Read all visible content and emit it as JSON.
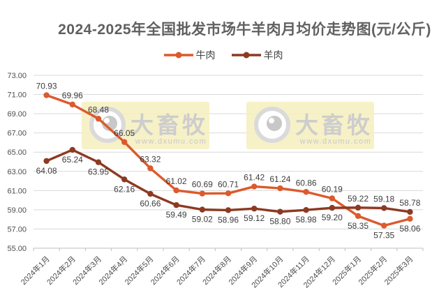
{
  "watermark": {
    "brand": "大畜牧",
    "url": "www.dxumu.com"
  },
  "chart_data": {
    "type": "line",
    "title": "2024-2025年全国批发市场牛羊肉月均价走势图(元/公斤)",
    "categories": [
      "2024年1月",
      "2024年2月",
      "2024年3月",
      "2024年4月",
      "2024年5月",
      "2024年6月",
      "2024年7月",
      "2024年8月",
      "2024年9月",
      "2024年10月",
      "2024年11月",
      "2024年12月",
      "2025年1月",
      "2025年2月",
      "2025年3月"
    ],
    "series": [
      {
        "name": "牛肉",
        "color": "#DC5A2D",
        "values": [
          70.93,
          69.96,
          68.48,
          66.05,
          63.32,
          61.02,
          60.69,
          60.71,
          61.42,
          61.24,
          60.86,
          60.19,
          58.35,
          57.35,
          58.06
        ]
      },
      {
        "name": "羊肉",
        "color": "#8C3A22",
        "values": [
          64.08,
          65.24,
          63.95,
          62.16,
          60.66,
          59.49,
          59.02,
          58.96,
          59.12,
          58.8,
          58.98,
          59.2,
          59.22,
          59.18,
          58.78
        ]
      }
    ],
    "ylim": [
      55,
      73
    ],
    "ytick_step": 2,
    "ytick_format": "2-decimals",
    "grid": "horizontal",
    "legend_position": "top",
    "value_labels": true,
    "colors": {
      "gridline": "#D9D9D9",
      "axis": "#BFBFBF",
      "axis_text": "#4D4D4D",
      "data_label_text": "#3D3D3D",
      "title_text": "#606060",
      "watermark_bg": "#F6EFC0",
      "watermark_text": "#CDCDCD"
    }
  }
}
